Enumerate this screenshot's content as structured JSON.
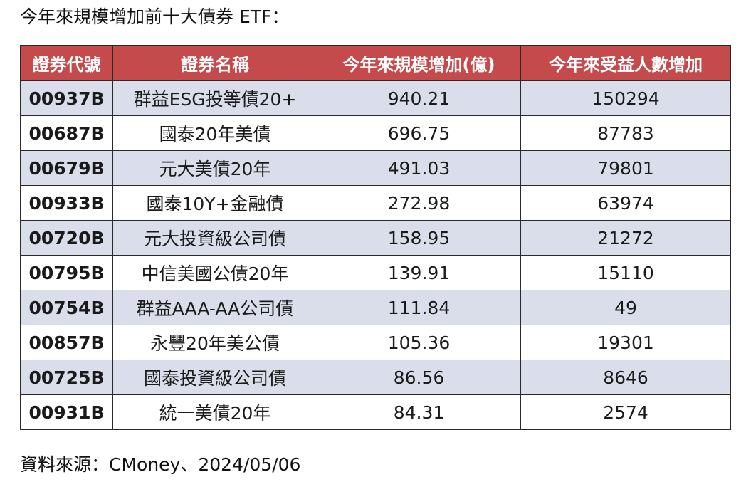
{
  "title": "今年來規模增加前十大債券 ETF：",
  "table": {
    "headers": [
      "證券代號",
      "證券名稱",
      "今年來規模增加(億)",
      "今年來受益人數增加"
    ],
    "rows": [
      [
        "00937B",
        "群益ESG投等債20+",
        "940.21",
        "150294"
      ],
      [
        "00687B",
        "國泰20年美債",
        "696.75",
        "87783"
      ],
      [
        "00679B",
        "元大美債20年",
        "491.03",
        "79801"
      ],
      [
        "00933B",
        "國泰10Y+金融債",
        "272.98",
        "63974"
      ],
      [
        "00720B",
        "元大投資級公司債",
        "158.95",
        "21272"
      ],
      [
        "00795B",
        "中信美國公債20年",
        "139.91",
        "15110"
      ],
      [
        "00754B",
        "群益AAA-AA公司債",
        "111.84",
        "49"
      ],
      [
        "00857B",
        "永豐20年美公債",
        "105.36",
        "19301"
      ],
      [
        "00725B",
        "國泰投資級公司債",
        "86.56",
        "8646"
      ],
      [
        "00931B",
        "統一美債20年",
        "84.31",
        "2574"
      ]
    ]
  },
  "source": "資料來源：CMoney、2024/05/06",
  "colors": {
    "header_bg": "#c44a4c",
    "header_text": "#ffffff",
    "stripe_bg": "#d9deea",
    "border": "#2a2a2a"
  }
}
